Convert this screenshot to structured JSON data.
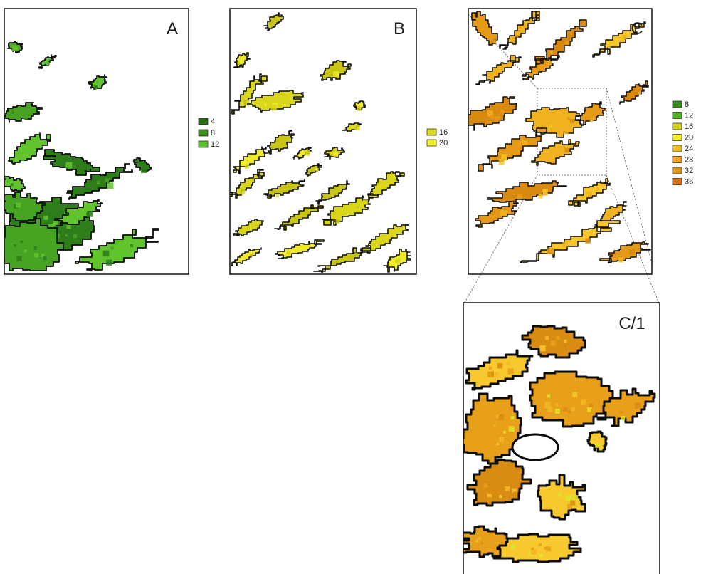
{
  "panels": [
    {
      "id": "A",
      "label": "A",
      "palette": [
        "#2e7d1a",
        "#47a322",
        "#62c42c"
      ]
    },
    {
      "id": "B",
      "label": "B",
      "palette": [
        "#d9d61c",
        "#eeea2a",
        "#c8c515"
      ]
    },
    {
      "id": "C",
      "label": "C",
      "palette": [
        "#e49a16",
        "#f0b21e",
        "#d88a10",
        "#f6c62a"
      ]
    },
    {
      "id": "C1",
      "label": "C/1",
      "palette": [
        "#e8a01a",
        "#f2b624",
        "#d98c12",
        "#f7c92e",
        "#dfe42a"
      ]
    }
  ],
  "legends": {
    "A": [
      {
        "label": "4",
        "color": "#2a6b16"
      },
      {
        "label": "8",
        "color": "#3f8f1f"
      },
      {
        "label": "12",
        "color": "#5fc22b"
      }
    ],
    "B": [
      {
        "label": "16",
        "color": "#d9d61c"
      },
      {
        "label": "20",
        "color": "#f2ee25"
      }
    ],
    "C": [
      {
        "label": "8",
        "color": "#3a8f1c"
      },
      {
        "label": "12",
        "color": "#57b225"
      },
      {
        "label": "16",
        "color": "#d6d41c"
      },
      {
        "label": "20",
        "color": "#f3ef26"
      },
      {
        "label": "24",
        "color": "#f4c223"
      },
      {
        "label": "28",
        "color": "#f0a422"
      },
      {
        "label": "32",
        "color": "#e39b20"
      },
      {
        "label": "36",
        "color": "#d9741a"
      }
    ]
  }
}
